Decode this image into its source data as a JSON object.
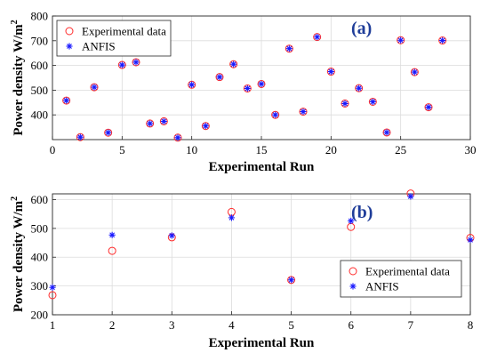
{
  "colors": {
    "experimental": "#ff2a2a",
    "anfis": "#1a1aff",
    "panel_label": "#1f3d99"
  },
  "chart_data": [
    {
      "type": "scatter",
      "panel_label": "(a)",
      "xlabel": "Experimental Run",
      "ylabel": "Power density W/m",
      "ylabel_sup": "2",
      "xlim": [
        0,
        30
      ],
      "ylim": [
        300,
        800
      ],
      "xticks": [
        0,
        5,
        10,
        15,
        20,
        25,
        30
      ],
      "yticks": [
        400,
        500,
        600,
        700,
        800
      ],
      "grid": true,
      "legend_position": "top-left",
      "x": [
        1,
        2,
        3,
        4,
        5,
        6,
        7,
        8,
        9,
        10,
        11,
        12,
        13,
        14,
        15,
        16,
        17,
        18,
        19,
        20,
        21,
        22,
        23,
        24,
        25,
        26,
        27,
        28
      ],
      "series": [
        {
          "name": "Experimental data",
          "marker": "circle",
          "values": [
            458,
            310,
            512,
            328,
            602,
            613,
            365,
            374,
            308,
            522,
            355,
            553,
            605,
            507,
            525,
            400,
            668,
            413,
            715,
            575,
            446,
            508,
            453,
            329,
            702,
            573,
            431,
            701
          ]
        },
        {
          "name": "ANFIS",
          "marker": "asterisk",
          "values": [
            458,
            310,
            512,
            328,
            602,
            613,
            365,
            374,
            308,
            522,
            355,
            553,
            605,
            507,
            525,
            400,
            668,
            413,
            715,
            575,
            446,
            508,
            453,
            329,
            702,
            573,
            431,
            701
          ]
        }
      ]
    },
    {
      "type": "scatter",
      "panel_label": "(b)",
      "xlabel": "Experimental Run",
      "ylabel": "Power density W/m",
      "ylabel_sup": "2",
      "xlim": [
        1,
        8
      ],
      "ylim": [
        200,
        620
      ],
      "xticks": [
        1,
        2,
        3,
        4,
        5,
        6,
        7,
        8
      ],
      "yticks": [
        200,
        300,
        400,
        500,
        600
      ],
      "grid": true,
      "legend_position": "bottom-right",
      "x": [
        1,
        2,
        3,
        4,
        5,
        6,
        7,
        8
      ],
      "series": [
        {
          "name": "Experimental data",
          "marker": "circle",
          "values": [
            268,
            422,
            469,
            557,
            321,
            505,
            621,
            467
          ]
        },
        {
          "name": "ANFIS",
          "marker": "asterisk",
          "values": [
            295,
            477,
            475,
            537,
            321,
            526,
            611,
            460
          ]
        }
      ]
    }
  ]
}
